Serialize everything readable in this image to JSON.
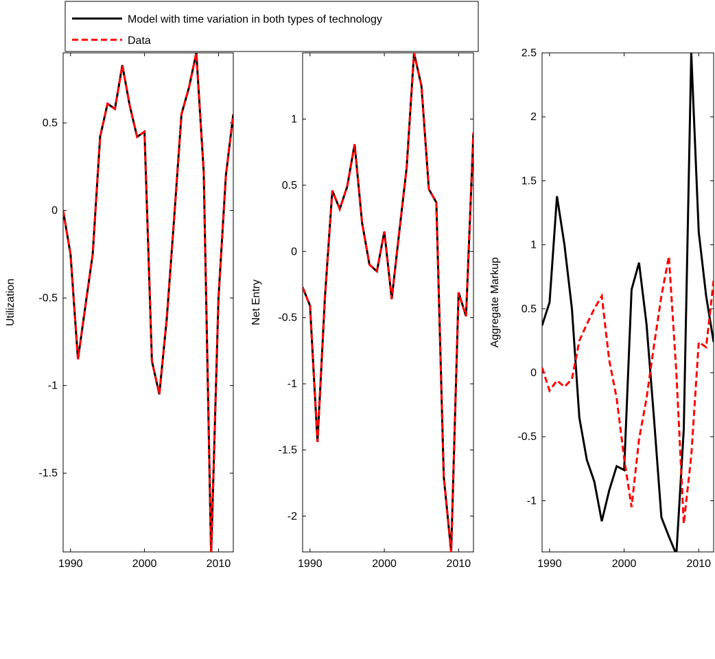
{
  "legend": {
    "placement": "top-left",
    "entries": [
      {
        "label": "Model with time variation in both types of technology",
        "color": "#000000",
        "style": "solid"
      },
      {
        "label": "Data",
        "color": "#ff0000",
        "style": "dashed"
      }
    ]
  },
  "chart_data": [
    {
      "type": "line",
      "title": "",
      "xlabel": "",
      "ylabel": "Utilization",
      "xlim": [
        1989,
        2012
      ],
      "ylim": [
        -1.95,
        0.9
      ],
      "xticks": [
        1990,
        2000,
        2010
      ],
      "yticks": [
        -1.5,
        -1,
        -0.5,
        0,
        0.5
      ],
      "ytick_labels": [
        "-1.5",
        "-1",
        "-0.5",
        "0",
        "0.5"
      ],
      "x": [
        1989,
        1990,
        1991,
        1992,
        1993,
        1994,
        1995,
        1996,
        1997,
        1998,
        1999,
        2000,
        2001,
        2002,
        2003,
        2004,
        2005,
        2006,
        2007,
        2008,
        2009,
        2010,
        2011,
        2012
      ],
      "series": [
        {
          "name": "Model with time variation in both types of technology",
          "color": "#000000",
          "dash": "solid",
          "values": [
            0.0,
            -0.25,
            -0.85,
            -0.55,
            -0.25,
            0.42,
            0.61,
            0.58,
            0.83,
            0.6,
            0.42,
            0.45,
            -0.86,
            -1.05,
            -0.62,
            -0.05,
            0.55,
            0.7,
            0.9,
            0.22,
            -1.97,
            -0.5,
            0.2,
            0.55
          ]
        },
        {
          "name": "Data",
          "color": "#ff0000",
          "dash": "dashed",
          "values": [
            0.0,
            -0.25,
            -0.85,
            -0.55,
            -0.25,
            0.42,
            0.61,
            0.58,
            0.83,
            0.6,
            0.42,
            0.45,
            -0.86,
            -1.05,
            -0.62,
            -0.05,
            0.55,
            0.7,
            0.9,
            0.22,
            -1.97,
            -0.5,
            0.2,
            0.55
          ]
        }
      ]
    },
    {
      "type": "line",
      "title": "",
      "xlabel": "",
      "ylabel": "Net Entry",
      "xlim": [
        1989,
        2012
      ],
      "ylim": [
        -2.27,
        1.5
      ],
      "xticks": [
        1990,
        2000,
        2010
      ],
      "yticks": [
        -2,
        -1.5,
        -1,
        -0.5,
        0,
        0.5,
        1
      ],
      "ytick_labels": [
        "-2",
        "-1.5",
        "-1",
        "-0.5",
        "0",
        "0.5",
        "1"
      ],
      "x": [
        1989,
        1990,
        1991,
        1992,
        1993,
        1994,
        1995,
        1996,
        1997,
        1998,
        1999,
        2000,
        2001,
        2002,
        2003,
        2004,
        2005,
        2006,
        2007,
        2008,
        2009,
        2010,
        2011,
        2012
      ],
      "series": [
        {
          "name": "Model with time variation in both types of technology",
          "color": "#000000",
          "dash": "solid",
          "values": [
            -0.27,
            -0.41,
            -1.44,
            -0.35,
            0.46,
            0.32,
            0.49,
            0.81,
            0.22,
            -0.1,
            -0.15,
            0.15,
            -0.36,
            0.14,
            0.63,
            1.5,
            1.25,
            0.47,
            0.37,
            -1.7,
            -2.27,
            -0.31,
            -0.49,
            0.9
          ]
        },
        {
          "name": "Data",
          "color": "#ff0000",
          "dash": "dashed",
          "values": [
            -0.27,
            -0.41,
            -1.44,
            -0.35,
            0.46,
            0.32,
            0.49,
            0.81,
            0.22,
            -0.1,
            -0.15,
            0.15,
            -0.36,
            0.14,
            0.63,
            1.5,
            1.25,
            0.47,
            0.37,
            -1.7,
            -2.27,
            -0.31,
            -0.49,
            0.9
          ]
        }
      ]
    },
    {
      "type": "line",
      "title": "",
      "xlabel": "",
      "ylabel": "Aggregate Markup",
      "xlim": [
        1989,
        2012
      ],
      "ylim": [
        -1.4,
        2.5
      ],
      "xticks": [
        1990,
        2000,
        2010
      ],
      "yticks": [
        -1,
        -0.5,
        0,
        0.5,
        1,
        1.5,
        2,
        2.5
      ],
      "ytick_labels": [
        "-1",
        "-0.5",
        "0",
        "0.5",
        "1",
        "1.5",
        "2",
        "2.5"
      ],
      "x": [
        1989,
        1990,
        1991,
        1992,
        1993,
        1994,
        1995,
        1996,
        1997,
        1998,
        1999,
        2000,
        2001,
        2002,
        2003,
        2004,
        2005,
        2006,
        2007,
        2008,
        2009,
        2010,
        2011,
        2012
      ],
      "series": [
        {
          "name": "Model with time variation in both types of technology",
          "color": "#000000",
          "dash": "solid",
          "values": [
            0.37,
            0.55,
            1.38,
            1.0,
            0.5,
            -0.35,
            -0.68,
            -0.85,
            -1.16,
            -0.92,
            -0.73,
            -0.76,
            0.65,
            0.86,
            0.38,
            -0.35,
            -1.13,
            -1.28,
            -1.42,
            -0.44,
            2.5,
            1.1,
            0.6,
            0.24
          ]
        },
        {
          "name": "Data",
          "color": "#ff0000",
          "dash": "dashed",
          "values": [
            0.04,
            -0.14,
            -0.06,
            -0.11,
            -0.05,
            0.25,
            0.38,
            0.5,
            0.6,
            0.1,
            -0.2,
            -0.67,
            -1.05,
            -0.52,
            -0.2,
            0.21,
            0.6,
            0.91,
            0.0,
            -1.18,
            -0.65,
            0.24,
            0.2,
            0.72
          ]
        }
      ]
    }
  ]
}
